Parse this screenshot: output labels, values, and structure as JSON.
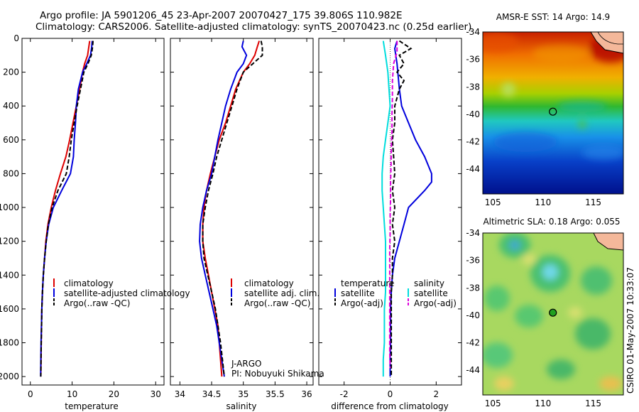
{
  "header": {
    "title_line1": "Argo profile: JA 5901206_45 23-Apr-2007 20070427_175 39.806S 110.982E",
    "title_line2": "Climatology: CARS2006. Satellite-adjusted climatology: synTS_20070423.nc (0.25d earlier)"
  },
  "footer_stamp": "CSIRO 01-May-2007 10:33:07",
  "colors": {
    "climatology": "#dd0000",
    "satellite": "#0000dd",
    "argo": "#000000",
    "sal_satellite": "#00dddd",
    "sal_argo": "#dd00dd"
  },
  "chart_data": [
    {
      "type": "line",
      "id": "temperature",
      "xlabel": "temperature",
      "ylabel": "",
      "xlim": [
        -2,
        32
      ],
      "ylim": [
        2050,
        0
      ],
      "x_ticks": [
        0,
        10,
        20,
        30
      ],
      "y_ticks": [
        0,
        200,
        400,
        600,
        800,
        1000,
        1200,
        1400,
        1600,
        1800,
        2000
      ],
      "legend": [
        "climatology",
        "satellite-adjusted climatology",
        "Argo(..raw -QC)"
      ],
      "legend_position": "lower-right",
      "series": [
        {
          "name": "climatology",
          "color_key": "climatology",
          "dash": "",
          "points": [
            [
              14.2,
              15
            ],
            [
              14.0,
              50
            ],
            [
              13.7,
              100
            ],
            [
              13.0,
              150
            ],
            [
              12.5,
              200
            ],
            [
              11.8,
              300
            ],
            [
              11.0,
              400
            ],
            [
              10.2,
              500
            ],
            [
              9.4,
              600
            ],
            [
              8.5,
              700
            ],
            [
              7.2,
              800
            ],
            [
              6.0,
              900
            ],
            [
              5.0,
              1000
            ],
            [
              4.2,
              1100
            ],
            [
              3.7,
              1200
            ],
            [
              3.4,
              1300
            ],
            [
              3.1,
              1400
            ],
            [
              2.9,
              1500
            ],
            [
              2.75,
              1600
            ],
            [
              2.65,
              1700
            ],
            [
              2.6,
              1800
            ],
            [
              2.55,
              1900
            ],
            [
              2.5,
              2000
            ]
          ]
        },
        {
          "name": "satellite-adjusted climatology",
          "color_key": "satellite",
          "dash": "",
          "points": [
            [
              14.8,
              15
            ],
            [
              14.7,
              50
            ],
            [
              14.4,
              100
            ],
            [
              13.5,
              150
            ],
            [
              12.5,
              200
            ],
            [
              11.5,
              300
            ],
            [
              11.0,
              400
            ],
            [
              10.8,
              500
            ],
            [
              10.5,
              600
            ],
            [
              10.3,
              700
            ],
            [
              9.6,
              800
            ],
            [
              7.5,
              900
            ],
            [
              5.5,
              1000
            ],
            [
              4.4,
              1100
            ],
            [
              3.8,
              1200
            ],
            [
              3.4,
              1300
            ],
            [
              3.1,
              1400
            ],
            [
              2.9,
              1500
            ],
            [
              2.75,
              1600
            ],
            [
              2.65,
              1700
            ],
            [
              2.55,
              1800
            ],
            [
              2.5,
              1900
            ],
            [
              2.45,
              2000
            ]
          ]
        },
        {
          "name": "Argo(..raw -QC)",
          "color_key": "argo",
          "dash": "6,3",
          "points": [
            [
              15.0,
              15
            ],
            [
              14.9,
              50
            ],
            [
              14.6,
              100
            ],
            [
              13.8,
              150
            ],
            [
              12.8,
              200
            ],
            [
              12.0,
              300
            ],
            [
              11.2,
              400
            ],
            [
              10.5,
              500
            ],
            [
              9.8,
              600
            ],
            [
              9.3,
              700
            ],
            [
              8.6,
              800
            ],
            [
              6.6,
              900
            ],
            [
              5.2,
              1000
            ],
            [
              4.3,
              1100
            ],
            [
              3.8,
              1200
            ],
            [
              3.4,
              1300
            ],
            [
              3.1,
              1400
            ],
            [
              2.9,
              1500
            ],
            [
              2.75,
              1600
            ],
            [
              2.7,
              1700
            ],
            [
              2.6,
              1800
            ],
            [
              2.55,
              1900
            ],
            [
              2.5,
              2000
            ]
          ]
        }
      ]
    },
    {
      "type": "line",
      "id": "salinity",
      "xlabel": "salinity",
      "ylabel": "",
      "xlim": [
        33.85,
        36.1
      ],
      "ylim": [
        2050,
        0
      ],
      "x_ticks": [
        34,
        34.5,
        35,
        35.5,
        36
      ],
      "legend": [
        "climatology",
        "satellite adj. clim.",
        "Argo(..raw -QC)"
      ],
      "legend_position": "lower-right",
      "annotation": [
        "J-ARGO",
        "PI: Nobuyuki Shikama"
      ],
      "series": [
        {
          "name": "climatology",
          "color_key": "climatology",
          "dash": "",
          "points": [
            [
              35.25,
              15
            ],
            [
              35.22,
              50
            ],
            [
              35.18,
              100
            ],
            [
              35.1,
              150
            ],
            [
              35.0,
              200
            ],
            [
              34.88,
              300
            ],
            [
              34.8,
              400
            ],
            [
              34.72,
              500
            ],
            [
              34.62,
              600
            ],
            [
              34.55,
              700
            ],
            [
              34.48,
              800
            ],
            [
              34.42,
              900
            ],
            [
              34.38,
              1000
            ],
            [
              34.36,
              1100
            ],
            [
              34.36,
              1200
            ],
            [
              34.4,
              1300
            ],
            [
              34.45,
              1400
            ],
            [
              34.5,
              1500
            ],
            [
              34.55,
              1600
            ],
            [
              34.6,
              1700
            ],
            [
              34.62,
              1800
            ],
            [
              34.64,
              1900
            ],
            [
              34.66,
              2000
            ]
          ]
        },
        {
          "name": "satellite adj. clim.",
          "color_key": "satellite",
          "dash": "",
          "points": [
            [
              35.0,
              15
            ],
            [
              34.98,
              50
            ],
            [
              35.05,
              100
            ],
            [
              35.0,
              150
            ],
            [
              34.9,
              200
            ],
            [
              34.8,
              300
            ],
            [
              34.72,
              400
            ],
            [
              34.66,
              500
            ],
            [
              34.6,
              600
            ],
            [
              34.55,
              700
            ],
            [
              34.5,
              800
            ],
            [
              34.42,
              900
            ],
            [
              34.36,
              1000
            ],
            [
              34.32,
              1100
            ],
            [
              34.31,
              1200
            ],
            [
              34.34,
              1300
            ],
            [
              34.4,
              1400
            ],
            [
              34.46,
              1500
            ],
            [
              34.52,
              1600
            ],
            [
              34.58,
              1700
            ],
            [
              34.62,
              1800
            ],
            [
              34.66,
              1900
            ],
            [
              34.7,
              2000
            ]
          ]
        },
        {
          "name": "Argo(..raw -QC)",
          "color_key": "argo",
          "dash": "6,3",
          "points": [
            [
              35.28,
              15
            ],
            [
              35.3,
              50
            ],
            [
              35.3,
              100
            ],
            [
              35.15,
              150
            ],
            [
              35.0,
              200
            ],
            [
              34.9,
              300
            ],
            [
              34.82,
              400
            ],
            [
              34.74,
              500
            ],
            [
              34.66,
              600
            ],
            [
              34.58,
              700
            ],
            [
              34.52,
              800
            ],
            [
              34.45,
              900
            ],
            [
              34.4,
              1000
            ],
            [
              34.36,
              1100
            ],
            [
              34.36,
              1200
            ],
            [
              34.38,
              1300
            ],
            [
              34.44,
              1400
            ],
            [
              34.5,
              1500
            ],
            [
              34.56,
              1600
            ],
            [
              34.6,
              1700
            ],
            [
              34.64,
              1800
            ],
            [
              34.67,
              1900
            ],
            [
              34.7,
              2000
            ]
          ]
        }
      ]
    },
    {
      "type": "line",
      "id": "difference",
      "xlabel": "difference from climatology",
      "ylabel": "",
      "xlim": [
        -3.1,
        3.1
      ],
      "ylim": [
        2050,
        0
      ],
      "x_ticks": [
        -2,
        0,
        2
      ],
      "legend_groups": [
        {
          "header": "temperature",
          "entries": [
            "satellite",
            "Argo(-adj)"
          ]
        },
        {
          "header": "salinity",
          "entries": [
            "satellite",
            "Argo(-adj)"
          ]
        }
      ],
      "legend_position": "lower-center",
      "series": [
        {
          "name": "temperature satellite",
          "color_key": "satellite",
          "dash": "",
          "points": [
            [
              0.3,
              15
            ],
            [
              0.2,
              60
            ],
            [
              0.3,
              150
            ],
            [
              0.4,
              300
            ],
            [
              0.5,
              400
            ],
            [
              0.8,
              500
            ],
            [
              1.1,
              600
            ],
            [
              1.5,
              700
            ],
            [
              1.8,
              800
            ],
            [
              1.8,
              850
            ],
            [
              1.5,
              900
            ],
            [
              0.8,
              1000
            ],
            [
              0.6,
              1100
            ],
            [
              0.4,
              1200
            ],
            [
              0.2,
              1300
            ],
            [
              0.1,
              1400
            ],
            [
              0.05,
              1500
            ],
            [
              0.02,
              1600
            ],
            [
              0.02,
              1700
            ],
            [
              0.02,
              1800
            ],
            [
              0.0,
              1900
            ],
            [
              0.0,
              2000
            ]
          ]
        },
        {
          "name": "temperature Argo(-adj)",
          "color_key": "argo",
          "dash": "6,3",
          "points": [
            [
              0.4,
              15
            ],
            [
              0.9,
              60
            ],
            [
              0.4,
              100
            ],
            [
              0.6,
              150
            ],
            [
              0.3,
              200
            ],
            [
              0.6,
              250
            ],
            [
              0.4,
              300
            ],
            [
              0.2,
              400
            ],
            [
              0.2,
              500
            ],
            [
              0.1,
              600
            ],
            [
              0.15,
              700
            ],
            [
              0.2,
              800
            ],
            [
              0.1,
              900
            ],
            [
              0.2,
              1000
            ],
            [
              0.1,
              1100
            ],
            [
              0.2,
              1200
            ],
            [
              0.1,
              1300
            ],
            [
              0.1,
              1400
            ],
            [
              0.05,
              1500
            ],
            [
              0.05,
              1600
            ],
            [
              0.05,
              1700
            ],
            [
              0.05,
              1800
            ],
            [
              0.05,
              1900
            ],
            [
              0.05,
              2000
            ]
          ]
        },
        {
          "name": "salinity satellite",
          "color_key": "sal_satellite",
          "dash": "",
          "points": [
            [
              -0.3,
              15
            ],
            [
              -0.2,
              100
            ],
            [
              -0.1,
              200
            ],
            [
              -0.05,
              300
            ],
            [
              0.0,
              400
            ],
            [
              -0.1,
              500
            ],
            [
              -0.2,
              600
            ],
            [
              -0.3,
              700
            ],
            [
              -0.35,
              800
            ],
            [
              -0.35,
              900
            ],
            [
              -0.3,
              1000
            ],
            [
              -0.25,
              1100
            ],
            [
              -0.2,
              1200
            ],
            [
              -0.2,
              1300
            ],
            [
              -0.2,
              1400
            ],
            [
              -0.2,
              1500
            ],
            [
              -0.25,
              1600
            ],
            [
              -0.25,
              1700
            ],
            [
              -0.25,
              1800
            ],
            [
              -0.3,
              1900
            ],
            [
              -0.3,
              2000
            ]
          ]
        },
        {
          "name": "salinity Argo(-adj)",
          "color_key": "sal_argo",
          "dash": "6,3",
          "points": [
            [
              0.3,
              15
            ],
            [
              0.3,
              80
            ],
            [
              0.15,
              150
            ],
            [
              0.1,
              250
            ],
            [
              0.1,
              350
            ],
            [
              0.08,
              450
            ],
            [
              0.08,
              550
            ],
            [
              0.05,
              650
            ],
            [
              0.04,
              750
            ],
            [
              0.02,
              850
            ],
            [
              0.02,
              950
            ],
            [
              0.0,
              1050
            ],
            [
              0.0,
              1150
            ],
            [
              -0.02,
              1250
            ],
            [
              -0.02,
              1350
            ],
            [
              -0.02,
              1450
            ],
            [
              -0.02,
              1550
            ],
            [
              -0.02,
              1650
            ],
            [
              -0.02,
              1750
            ],
            [
              -0.02,
              1850
            ],
            [
              0.0,
              1950
            ]
          ]
        }
      ]
    },
    {
      "type": "heatmap",
      "id": "sst-map",
      "title": "AMSR-E SST: 14 Argo: 14.9",
      "xlim": [
        104,
        118
      ],
      "ylim": [
        -45.8,
        -34
      ],
      "x_ticks": [
        105,
        110,
        115
      ],
      "y_ticks": [
        -34,
        -36,
        -38,
        -40,
        -42,
        -44
      ],
      "marker": {
        "lon": 110.982,
        "lat": -39.806
      }
    },
    {
      "type": "heatmap",
      "id": "sla-map",
      "title": "Altimetric SLA: 0.18 Argo: 0.055",
      "xlim": [
        104,
        118
      ],
      "ylim": [
        -45.8,
        -34
      ],
      "x_ticks": [
        105,
        110,
        115
      ],
      "y_ticks": [
        -34,
        -36,
        -38,
        -40,
        -42,
        -44
      ],
      "marker": {
        "lon": 110.982,
        "lat": -39.806
      }
    }
  ]
}
